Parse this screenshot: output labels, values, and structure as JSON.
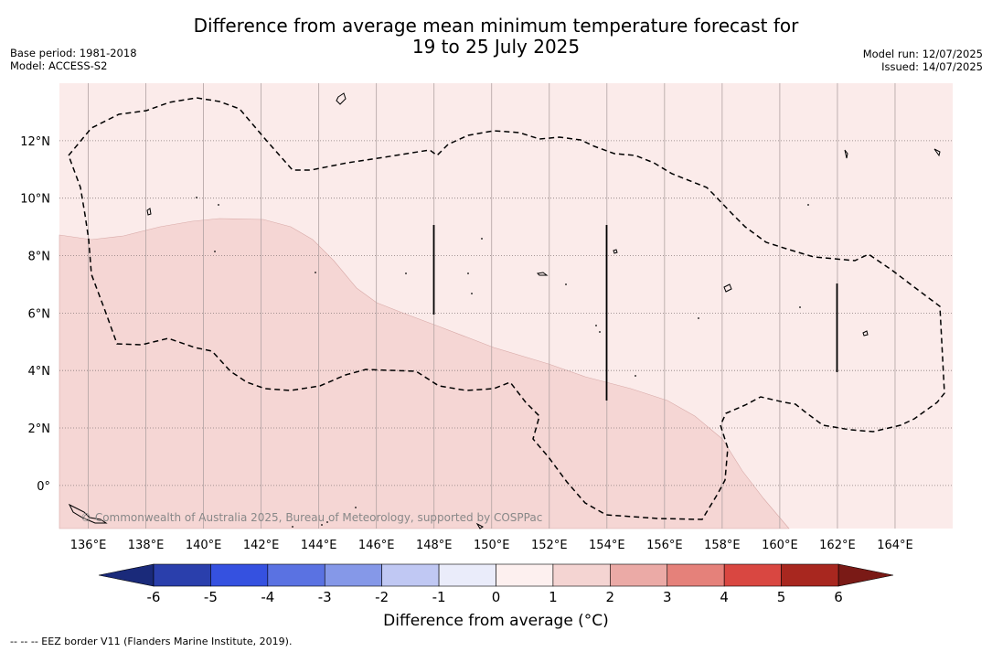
{
  "header": {
    "title_line1": "Difference from average mean minimum temperature forecast for",
    "title_line2": "19 to 25 July 2025",
    "base_period": "Base period: 1981-2018",
    "model": "Model: ACCESS-S2",
    "model_run": "Model run: 12/07/2025",
    "issued": "Issued: 14/07/2025"
  },
  "map": {
    "lon_range": [
      135,
      166
    ],
    "lat_range": [
      -1.5,
      14
    ],
    "lon_ticks": [
      "136°E",
      "138°E",
      "140°E",
      "142°E",
      "144°E",
      "146°E",
      "148°E",
      "150°E",
      "152°E",
      "154°E",
      "156°E",
      "158°E",
      "160°E",
      "162°E",
      "164°E"
    ],
    "lat_ticks": [
      "0°",
      "2°N",
      "4°N",
      "6°N",
      "8°N",
      "10°N",
      "12°N"
    ],
    "background_color": "#fbebea",
    "zone_color": "#f5d6d4",
    "watermark": "© Commonwealth of Australia 2025, Bureau of Meteorology, supported by COSPPac"
  },
  "colorbar": {
    "ticks": [
      "-6",
      "-5",
      "-4",
      "-3",
      "-2",
      "-1",
      "0",
      "1",
      "2",
      "3",
      "4",
      "5",
      "6"
    ],
    "colors": [
      "#2a3fac",
      "#3551e0",
      "#5a72e2",
      "#8598e8",
      "#c0c8f3",
      "#eaecfa",
      "#fdf0ef",
      "#f4d4d2",
      "#ebaaa6",
      "#e5817a",
      "#d94741",
      "#a8271f"
    ],
    "low_extend_color": "#1a2a7a",
    "high_extend_color": "#7a1a16",
    "label": "Difference from average (°C)"
  },
  "footnote": "--  --  -- EEZ border V11 (Flanders Marine Institute, 2019)."
}
